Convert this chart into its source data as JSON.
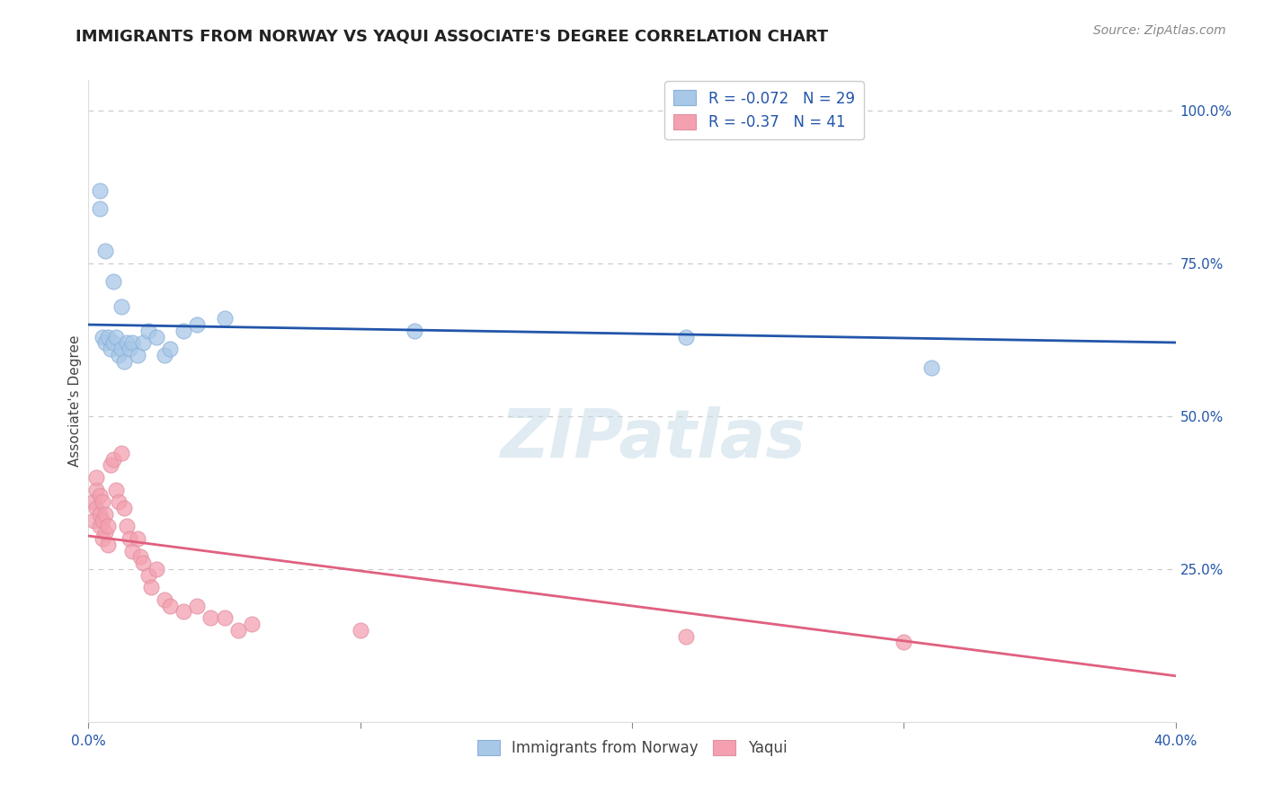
{
  "title": "IMMIGRANTS FROM NORWAY VS YAQUI ASSOCIATE'S DEGREE CORRELATION CHART",
  "source": "Source: ZipAtlas.com",
  "ylabel": "Associate's Degree",
  "xlim": [
    0.0,
    0.4
  ],
  "ylim": [
    0.0,
    1.05
  ],
  "grid_color": "#c8c8c8",
  "background_color": "#ffffff",
  "watermark": "ZIPatlas",
  "norway_color": "#a8c8e8",
  "yaqui_color": "#f4a0b0",
  "norway_line_color": "#2255aa",
  "yaqui_line_color": "#e06080",
  "norway_R": -0.072,
  "norway_N": 29,
  "yaqui_R": -0.37,
  "yaqui_N": 41,
  "norway_x": [
    0.004,
    0.004,
    0.006,
    0.009,
    0.012,
    0.005,
    0.006,
    0.007,
    0.008,
    0.009,
    0.01,
    0.011,
    0.012,
    0.013,
    0.014,
    0.015,
    0.016,
    0.018,
    0.02,
    0.022,
    0.025,
    0.028,
    0.03,
    0.035,
    0.04,
    0.05,
    0.12,
    0.22,
    0.31
  ],
  "norway_y": [
    0.87,
    0.84,
    0.77,
    0.72,
    0.68,
    0.63,
    0.62,
    0.63,
    0.61,
    0.62,
    0.63,
    0.6,
    0.61,
    0.59,
    0.62,
    0.61,
    0.62,
    0.6,
    0.62,
    0.64,
    0.63,
    0.6,
    0.61,
    0.64,
    0.65,
    0.66,
    0.64,
    0.63,
    0.58
  ],
  "yaqui_x": [
    0.002,
    0.002,
    0.003,
    0.003,
    0.003,
    0.004,
    0.004,
    0.004,
    0.005,
    0.005,
    0.005,
    0.006,
    0.006,
    0.007,
    0.007,
    0.008,
    0.009,
    0.01,
    0.011,
    0.012,
    0.013,
    0.014,
    0.015,
    0.016,
    0.018,
    0.019,
    0.02,
    0.022,
    0.023,
    0.025,
    0.028,
    0.03,
    0.035,
    0.04,
    0.045,
    0.05,
    0.055,
    0.06,
    0.1,
    0.22,
    0.3
  ],
  "yaqui_y": [
    0.33,
    0.36,
    0.35,
    0.38,
    0.4,
    0.32,
    0.34,
    0.37,
    0.3,
    0.33,
    0.36,
    0.31,
    0.34,
    0.29,
    0.32,
    0.42,
    0.43,
    0.38,
    0.36,
    0.44,
    0.35,
    0.32,
    0.3,
    0.28,
    0.3,
    0.27,
    0.26,
    0.24,
    0.22,
    0.25,
    0.2,
    0.19,
    0.18,
    0.19,
    0.17,
    0.17,
    0.15,
    0.16,
    0.15,
    0.14,
    0.13
  ],
  "title_fontsize": 13,
  "axis_label_fontsize": 11,
  "tick_fontsize": 11,
  "legend_fontsize": 12,
  "source_fontsize": 10
}
